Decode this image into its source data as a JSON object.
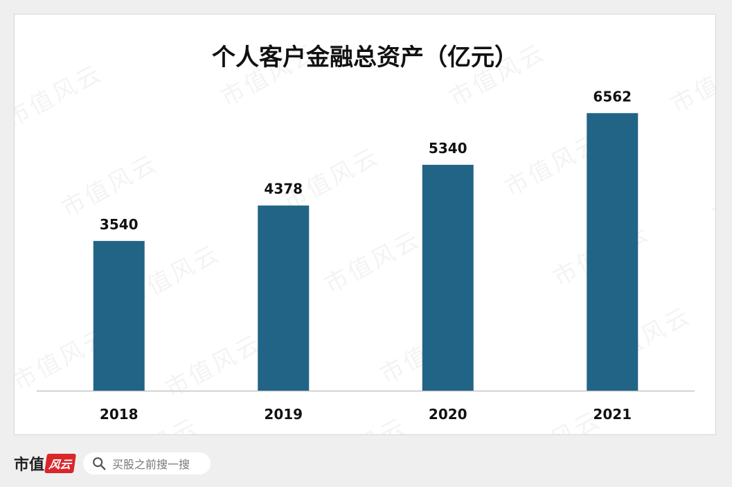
{
  "chart_data": {
    "type": "bar",
    "title": "个人客户金融总资产（亿元）",
    "categories": [
      "2018",
      "2019",
      "2020",
      "2021"
    ],
    "values": [
      3540,
      4378,
      5340,
      6562
    ],
    "xlabel": "",
    "ylabel": "",
    "ylim": [
      0,
      7500
    ],
    "grid": false,
    "legend": "none",
    "bar_color": "#226486"
  },
  "watermark": "市值风云",
  "footer": {
    "brand_text": "市值",
    "brand_badge": "风云",
    "search_placeholder": "买股之前搜一搜"
  }
}
